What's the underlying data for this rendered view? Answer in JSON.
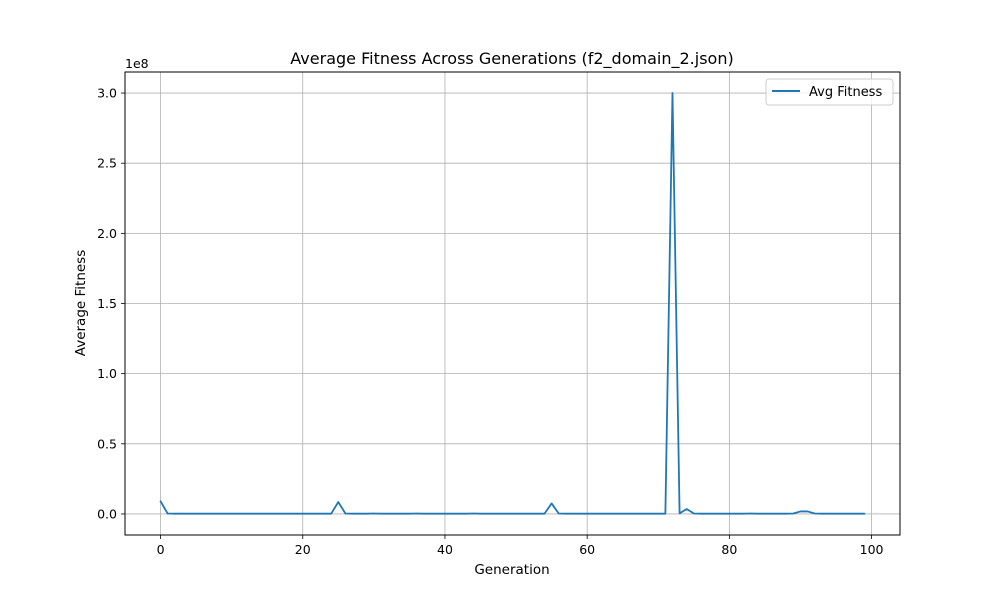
{
  "chart_data": {
    "type": "line",
    "title": "Average Fitness Across Generations (f2_domain_2.json)",
    "xlabel": "Generation",
    "ylabel": "Average Fitness",
    "y_offset_label": "1e8",
    "y_scale": 100000000,
    "xlim": [
      -5,
      104
    ],
    "ylim": [
      -15000000,
      315000000
    ],
    "x_ticks": [
      0,
      20,
      40,
      60,
      80,
      100
    ],
    "x_tick_labels": [
      "0",
      "20",
      "40",
      "60",
      "80",
      "100"
    ],
    "y_ticks": [
      0,
      50000000,
      100000000,
      150000000,
      200000000,
      250000000,
      300000000
    ],
    "y_tick_labels": [
      "0.0",
      "0.5",
      "1.0",
      "1.5",
      "2.0",
      "2.5",
      "3.0"
    ],
    "grid": true,
    "legend_placement": "top-right",
    "series": [
      {
        "name": "Avg Fitness",
        "color": "#1f77b4",
        "x": [
          0,
          1,
          2,
          3,
          4,
          5,
          6,
          7,
          8,
          9,
          10,
          11,
          12,
          13,
          14,
          15,
          16,
          17,
          18,
          19,
          20,
          21,
          22,
          23,
          24,
          25,
          26,
          27,
          28,
          29,
          30,
          31,
          32,
          33,
          34,
          35,
          36,
          37,
          38,
          39,
          40,
          41,
          42,
          43,
          44,
          45,
          46,
          47,
          48,
          49,
          50,
          51,
          52,
          53,
          54,
          55,
          56,
          57,
          58,
          59,
          60,
          61,
          62,
          63,
          64,
          65,
          66,
          67,
          68,
          69,
          70,
          71,
          72,
          73,
          74,
          75,
          76,
          77,
          78,
          79,
          80,
          81,
          82,
          83,
          84,
          85,
          86,
          87,
          88,
          89,
          90,
          91,
          92,
          93,
          94,
          95,
          96,
          97,
          98,
          99
        ],
        "y": [
          9000000,
          300000,
          200000,
          200000,
          200000,
          200000,
          200000,
          200000,
          200000,
          200000,
          200000,
          200000,
          200000,
          200000,
          200000,
          200000,
          200000,
          200000,
          200000,
          200000,
          200000,
          200000,
          200000,
          200000,
          200000,
          8500000,
          300000,
          200000,
          200000,
          200000,
          300000,
          200000,
          200000,
          200000,
          200000,
          200000,
          300000,
          200000,
          200000,
          200000,
          200000,
          200000,
          200000,
          200000,
          300000,
          200000,
          200000,
          200000,
          200000,
          200000,
          200000,
          200000,
          200000,
          200000,
          200000,
          7500000,
          300000,
          200000,
          200000,
          200000,
          200000,
          200000,
          200000,
          200000,
          200000,
          200000,
          200000,
          200000,
          200000,
          200000,
          200000,
          200000,
          300000000,
          400000,
          3500000,
          300000,
          200000,
          200000,
          200000,
          200000,
          200000,
          200000,
          200000,
          300000,
          200000,
          200000,
          200000,
          200000,
          200000,
          300000,
          1800000,
          1800000,
          300000,
          200000,
          200000,
          200000,
          200000,
          200000,
          200000,
          200000
        ]
      }
    ]
  }
}
